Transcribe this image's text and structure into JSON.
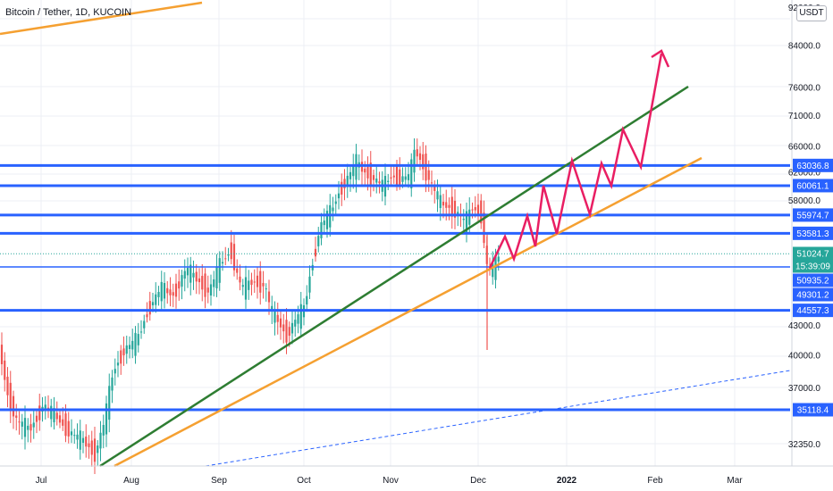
{
  "chart_data": {
    "type": "candlestick",
    "title": "Bitcoin / Tether, 1D, KUCOIN",
    "currency": "USDT",
    "y_axis": {
      "scale": "log",
      "tick_labels": [
        "92000.0",
        "84000.0",
        "76000.0",
        "71000.0",
        "66000.0",
        "62000.0",
        "58000.0",
        "43000.0",
        "40000.0",
        "37000.0",
        "32350.0"
      ]
    },
    "x_axis": {
      "tick_labels": [
        "Jul",
        "Aug",
        "Sep",
        "Oct",
        "Nov",
        "Dec",
        "2022",
        "Feb",
        "Mar"
      ]
    },
    "horizontal_levels": [
      {
        "label": "63036.8",
        "value": 63036.8,
        "color": "#2962ff"
      },
      {
        "label": "60061.1",
        "value": 60061.1,
        "color": "#2962ff"
      },
      {
        "label": "55974.7",
        "value": 55974.7,
        "color": "#2962ff"
      },
      {
        "label": "53581.3",
        "value": 53581.3,
        "color": "#2962ff"
      },
      {
        "label": "44557.3",
        "value": 44557.3,
        "color": "#2962ff"
      },
      {
        "label": "35118.4",
        "value": 35118.4,
        "color": "#2962ff"
      }
    ],
    "price_labels": [
      {
        "label": "51024.7",
        "value": 51024.7,
        "color": "#26a69a"
      },
      {
        "label": "15:39:09",
        "value": 51024.7,
        "color": "#26a69a"
      },
      {
        "label": "50935.2",
        "value": 50935.2,
        "color": "#2962ff"
      },
      {
        "label": "49301.2",
        "value": 49301.2,
        "color": "#2962ff"
      }
    ],
    "candle_colors": {
      "up": "#26a69a",
      "down": "#ef5350"
    },
    "trendline_colors": {
      "green": "#2e7d32",
      "orange": "#f5a031",
      "projection": "#e91e63",
      "dotted": "#2962ff"
    }
  }
}
